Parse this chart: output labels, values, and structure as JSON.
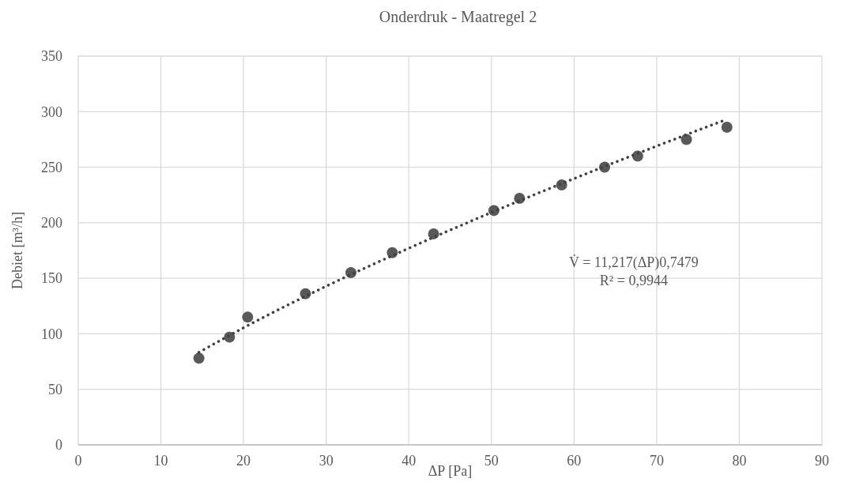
{
  "chart_data": {
    "type": "scatter",
    "title": "Onderdruk - Maatregel 2",
    "xlabel": "ΔP [Pa]",
    "ylabel": "Debiet [m³/h]",
    "xlim": [
      0,
      90
    ],
    "xticks": [
      0,
      10,
      20,
      30,
      40,
      50,
      60,
      70,
      80,
      90
    ],
    "ylim": [
      0,
      350
    ],
    "yticks": [
      0,
      50,
      100,
      150,
      200,
      250,
      300,
      350
    ],
    "grid": true,
    "series": [
      {
        "color": "#595959",
        "marker": "circle",
        "x": [
          14.6,
          18.3,
          20.5,
          27.5,
          33,
          38,
          43,
          50.3,
          53.4,
          58.5,
          63.7,
          67.7,
          73.6,
          78.5
        ],
        "values": [
          78,
          97,
          115,
          136,
          155,
          173,
          190,
          211,
          222,
          234,
          250,
          260,
          275,
          286
        ]
      },
      {
        "type": "line",
        "color": "#404040",
        "line_style": "dotted",
        "marker": "none",
        "x": [
          14.6,
          20,
          30,
          40,
          50,
          60,
          70,
          78.5
        ],
        "values": [
          83.3,
          105.4,
          142.8,
          177.0,
          209.2,
          239.7,
          269.0,
          293.1
        ]
      }
    ],
    "annotations": [
      "V̇ = 11,217(ΔP)0,7479",
      "R² = 0,9944"
    ]
  }
}
